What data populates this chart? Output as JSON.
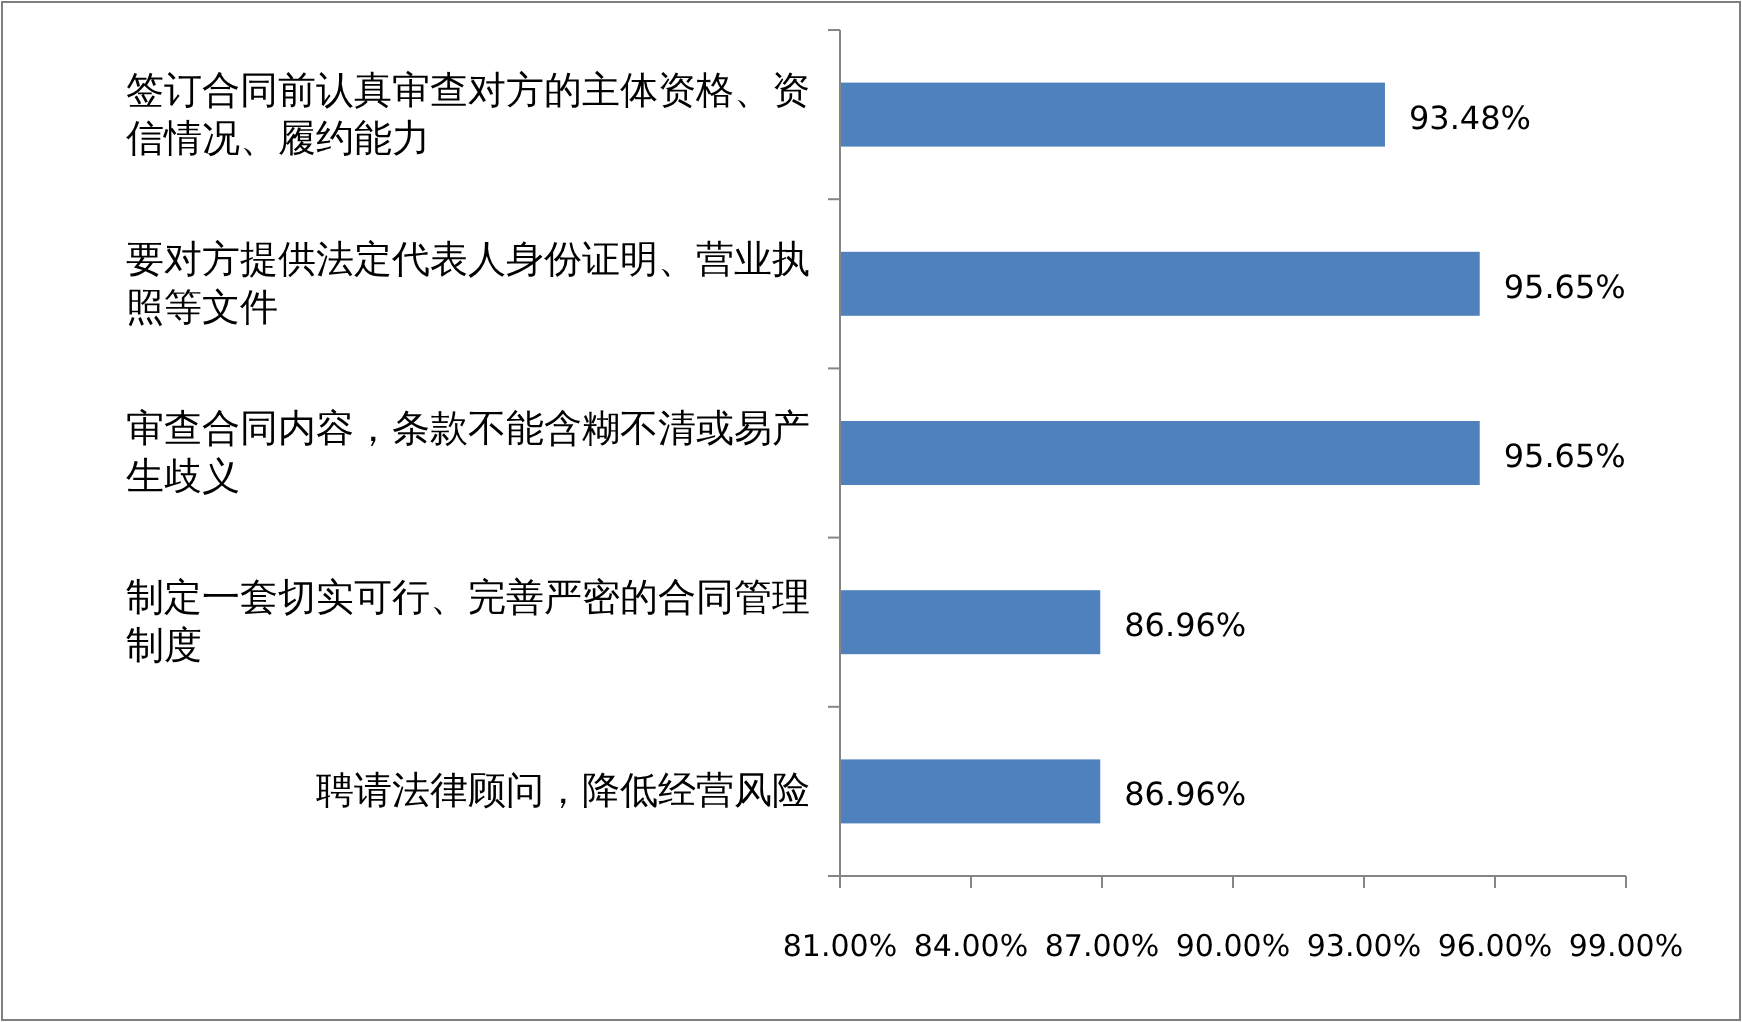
{
  "chart_data": {
    "type": "bar",
    "orientation": "horizontal",
    "categories": [
      "签订合同前认真审查对方的主体资格、资信情况、履约能力",
      "要对方提供法定代表人身份证明、营业执照等文件",
      "审查合同内容，条款不能含糊不清或易产生歧义",
      "制定一套切实可行、完善严密的合同管理制度",
      "聘请法律顾问，降低经营风险"
    ],
    "values": [
      93.48,
      95.65,
      95.65,
      86.96,
      86.96
    ],
    "value_labels": [
      "93.48%",
      "95.65%",
      "95.65%",
      "86.96%",
      "86.96%"
    ],
    "color": "#4f81bd",
    "xlim": [
      81,
      99
    ],
    "xticks": [
      {
        "value": 81,
        "label": "81.00%"
      },
      {
        "value": 84,
        "label": "84.00%"
      },
      {
        "value": 87,
        "label": "87.00%"
      },
      {
        "value": 90,
        "label": "90.00%"
      },
      {
        "value": 93,
        "label": "93.00%"
      },
      {
        "value": 96,
        "label": "96.00%"
      },
      {
        "value": 99,
        "label": "99.00%"
      }
    ],
    "grid": false
  }
}
